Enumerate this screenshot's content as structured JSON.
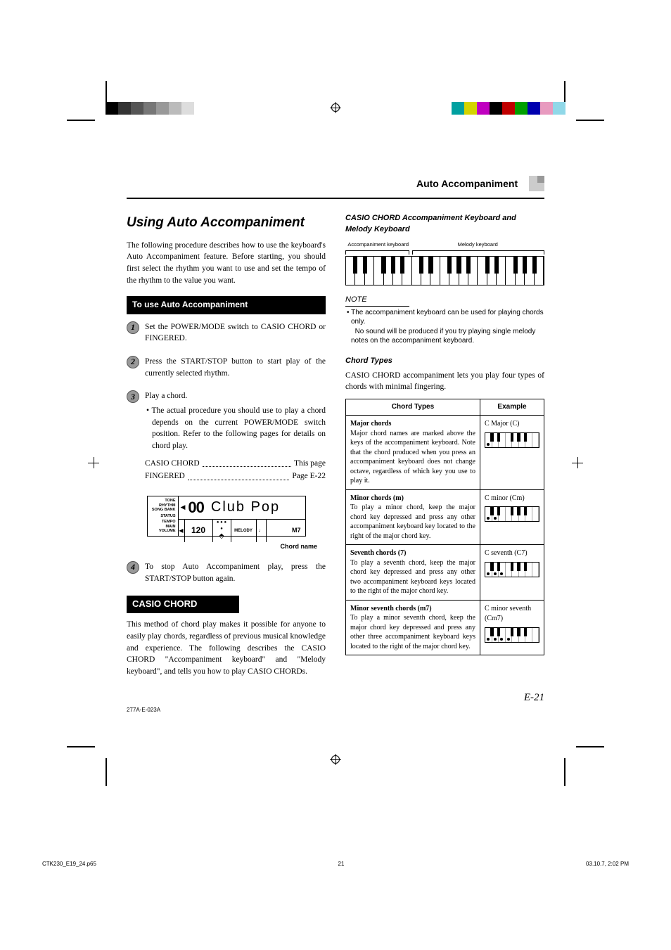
{
  "colorbars": {
    "left": [
      "#000000",
      "#333333",
      "#555555",
      "#777777",
      "#999999",
      "#bbbbbb",
      "#dddddd",
      "#ffffff"
    ],
    "right": [
      "#00a0a0",
      "#d4d400",
      "#c000c0",
      "#000000",
      "#c00000",
      "#00a000",
      "#0000b0",
      "#e89abf",
      "#90d8e8"
    ]
  },
  "header": {
    "section": "Auto Accompaniment"
  },
  "main": {
    "heading": "Using Auto Accompaniment",
    "intro": "The following procedure describes how to use the keyboard's Auto Accompaniment feature. Before starting, you should first select the rhythm you want to use and set the tempo of the rhythm to the value you want.",
    "sub1": "To use Auto Accompaniment",
    "step1": "Set the POWER/MODE switch to CASIO CHORD or FINGERED.",
    "step2": "Press the START/STOP button to start play of the currently selected rhythm.",
    "step3a": "Play a chord.",
    "step3b": "The actual procedure you should use to play a chord depends on the current POWER/MODE switch position. Refer to the following pages for details on chord play.",
    "ref1l": "CASIO CHORD",
    "ref1r": "This page",
    "ref2l": "FINGERED",
    "ref2r": "Page E-22",
    "lcd": {
      "labels": [
        "TONE",
        "RHYTHM",
        "SONG BANK",
        "STATUS",
        "TEMPO",
        "MAIN VOLUME"
      ],
      "num": "00",
      "text": "Club Pop",
      "tempo": "120",
      "melody": "MELODY",
      "m7": "M7"
    },
    "chord_name_label": "Chord name",
    "step4": "To stop Auto Accompaniment play, press the START/STOP button again.",
    "casio_h": "CASIO CHORD",
    "casio_body": "This method of chord play makes it possible for anyone to easily play chords, regardless of previous musical knowledge and experience. The following describes the CASIO CHORD \"Accompaniment keyboard\" and \"Melody keyboard\", and tells you how to play CASIO CHORDs."
  },
  "right": {
    "fig_title": "CASIO CHORD Accompaniment Keyboard and Melody Keyboard",
    "kb_acc": "Accompaniment keyboard",
    "kb_mel": "Melody keyboard",
    "note_h": "NOTE",
    "note1": "The accompaniment keyboard can be used for playing chords only.",
    "note2": "No sound will be produced if you try playing single melody notes on the accompaniment keyboard.",
    "ct_h": "Chord Types",
    "ct_intro": "CASIO CHORD accompaniment lets you play four types of chords with minimal fingering.",
    "th1": "Chord Types",
    "th2": "Example",
    "rows": [
      {
        "h": "Major chords",
        "b": "Major chord names are marked above the keys of the accompaniment keyboard. Note that the chord produced when you press an accompaniment keyboard does not change octave, regardless of which key you use to play it.",
        "ex": "C Major (C)",
        "dots": [
          0
        ]
      },
      {
        "h": "Minor chords (m)",
        "b": "To play a minor chord, keep the major chord key depressed and press any other accompaniment keyboard key located to the right of the major chord key.",
        "ex": "C minor (Cm)",
        "dots": [
          0,
          1
        ]
      },
      {
        "h": "Seventh chords (7)",
        "b": "To play a seventh chord, keep the major chord key depressed and press any other two accompaniment keyboard keys located to the right of the major chord key.",
        "ex": "C seventh (C7)",
        "dots": [
          0,
          1,
          2
        ]
      },
      {
        "h": "Minor seventh chords (m7)",
        "b": "To play a minor seventh chord, keep the major chord key depressed and press any other three accompaniment keyboard keys located to the right of the major chord key.",
        "ex": "C minor seventh (Cm7)",
        "dots": [
          0,
          1,
          2,
          3
        ]
      }
    ]
  },
  "footer": {
    "pagenum": "E-21",
    "code": "277A-E-023A",
    "file": "CTK230_E19_24.p65",
    "page": "21",
    "date": "03.10.7, 2:02 PM"
  }
}
